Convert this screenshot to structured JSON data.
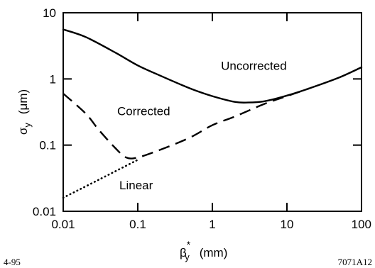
{
  "chart_data": {
    "type": "line",
    "xscale": "log",
    "yscale": "log",
    "xlim": [
      0.01,
      100
    ],
    "ylim": [
      0.01,
      10
    ],
    "xticks": [
      "0.01",
      "0.1",
      "1",
      "10",
      "100"
    ],
    "yticks": [
      "0.01",
      "0.1",
      "1",
      "10"
    ],
    "ylabel": {
      "symbol": "σ",
      "sub": "y",
      "unit": "(μm)"
    },
    "xlabel": {
      "symbol": "β",
      "sub": "y",
      "sup": "*",
      "unit": "(mm)"
    },
    "series": [
      {
        "name": "Uncorrected",
        "style": "solid",
        "x": [
          0.01,
          0.02,
          0.05,
          0.1,
          0.2,
          0.5,
          1,
          2,
          3,
          5,
          10,
          20,
          50,
          100
        ],
        "y": [
          5.6,
          4.3,
          2.5,
          1.6,
          1.12,
          0.72,
          0.55,
          0.45,
          0.44,
          0.46,
          0.56,
          0.72,
          1.05,
          1.5
        ]
      },
      {
        "name": "Corrected",
        "style": "dashed",
        "x": [
          0.01,
          0.02,
          0.03,
          0.05,
          0.07,
          0.1,
          0.2,
          0.5,
          1,
          2,
          5,
          10,
          20
        ],
        "y": [
          0.6,
          0.3,
          0.17,
          0.09,
          0.065,
          0.065,
          0.085,
          0.13,
          0.2,
          0.27,
          0.42,
          0.55,
          0.72
        ]
      },
      {
        "name": "Linear",
        "style": "dotted",
        "x": [
          0.01,
          0.03,
          0.1
        ],
        "y": [
          0.016,
          0.03,
          0.06
        ]
      }
    ]
  },
  "footer": {
    "left": "4-95",
    "right": "7071A12"
  }
}
